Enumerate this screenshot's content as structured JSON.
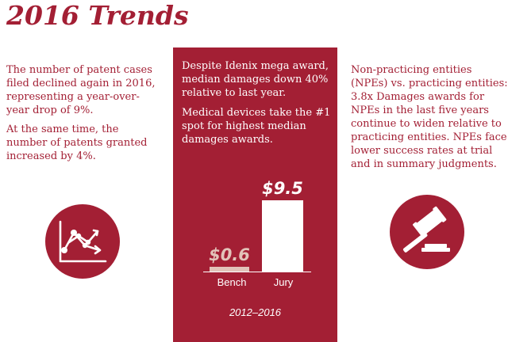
{
  "title": "2016 Trends",
  "left": {
    "paragraphs": [
      "The number of patent cases filed declined again in 2016, representing a year-over-year drop of 9%.",
      "At the same time, the number of patents granted increased by 4%."
    ],
    "icon": "line-chart-icon"
  },
  "center": {
    "paragraphs": [
      "Despite Idenix mega award, median damages down 40% relative to last year.",
      "Medical devices take the #1 spot for highest median damages awards."
    ],
    "bars": [
      {
        "label": "Bench",
        "value_label": "$0.6",
        "value": 0.6
      },
      {
        "label": "Jury",
        "value_label": "$9.5",
        "value": 9.5
      }
    ],
    "period": "2012–2016"
  },
  "right": {
    "paragraphs": [
      "Non-practicing entities (NPEs) vs. practicing entities: 3.8x Damages awards for NPEs in the last five years continue to widen relative to practicing entities. NPEs face lower success rates at trial and in summary judgments."
    ],
    "icon": "gavel-icon"
  },
  "colors": {
    "accent": "#a31f34",
    "bench_bar": "#e2c3b9",
    "panel_text": "#ffffff"
  }
}
